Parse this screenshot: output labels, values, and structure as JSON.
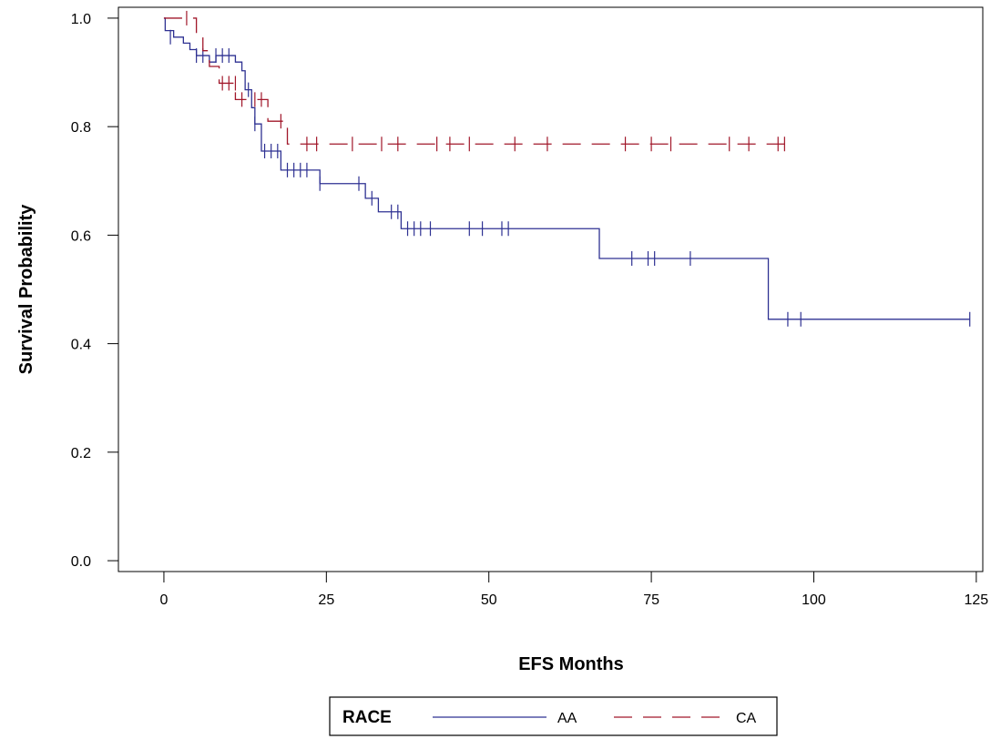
{
  "chart_data": {
    "type": "line",
    "subtype": "kaplan-meier-survival",
    "xlabel": "EFS Months",
    "ylabel": "Survival Probability",
    "xlim": [
      -7,
      126
    ],
    "ylim": [
      -0.02,
      1.02
    ],
    "xticks": [
      0,
      25,
      50,
      75,
      100,
      125
    ],
    "xtick_labels": [
      "0",
      "25",
      "50",
      "75",
      "100",
      "125"
    ],
    "yticks": [
      0.0,
      0.2,
      0.4,
      0.6,
      0.8,
      1.0
    ],
    "ytick_labels": [
      "0.0",
      "0.2",
      "0.4",
      "0.6",
      "0.8",
      "1.0"
    ],
    "grid": false,
    "legend": {
      "placement": "bottom-center",
      "title": "RACE",
      "entries": [
        "AA",
        "CA"
      ]
    },
    "series": [
      {
        "name": "AA",
        "color": "#2e3192",
        "linestyle": "solid",
        "steps": [
          {
            "x": 0,
            "y": 1.0
          },
          {
            "x": 0.2,
            "y": 0.977
          },
          {
            "x": 1.5,
            "y": 0.965
          },
          {
            "x": 3,
            "y": 0.954
          },
          {
            "x": 4,
            "y": 0.942
          },
          {
            "x": 5,
            "y": 0.931
          },
          {
            "x": 7,
            "y": 0.919
          },
          {
            "x": 8,
            "y": 0.931
          },
          {
            "x": 11,
            "y": 0.919
          },
          {
            "x": 12,
            "y": 0.903
          },
          {
            "x": 12.5,
            "y": 0.868
          },
          {
            "x": 13.5,
            "y": 0.835
          },
          {
            "x": 14,
            "y": 0.805
          },
          {
            "x": 15,
            "y": 0.755
          },
          {
            "x": 18,
            "y": 0.72
          },
          {
            "x": 24,
            "y": 0.695
          },
          {
            "x": 31,
            "y": 0.668
          },
          {
            "x": 33,
            "y": 0.643
          },
          {
            "x": 36.5,
            "y": 0.612
          },
          {
            "x": 67,
            "y": 0.557
          },
          {
            "x": 93,
            "y": 0.445
          },
          {
            "x": 124,
            "y": 0.445
          }
        ],
        "censored": [
          {
            "x": 1,
            "y": 0.965
          },
          {
            "x": 5,
            "y": 0.931
          },
          {
            "x": 6,
            "y": 0.931
          },
          {
            "x": 8,
            "y": 0.931
          },
          {
            "x": 9,
            "y": 0.931
          },
          {
            "x": 10,
            "y": 0.931
          },
          {
            "x": 13,
            "y": 0.868
          },
          {
            "x": 14,
            "y": 0.805
          },
          {
            "x": 15.5,
            "y": 0.755
          },
          {
            "x": 16.5,
            "y": 0.755
          },
          {
            "x": 17.5,
            "y": 0.755
          },
          {
            "x": 19,
            "y": 0.72
          },
          {
            "x": 20,
            "y": 0.72
          },
          {
            "x": 21,
            "y": 0.72
          },
          {
            "x": 22,
            "y": 0.72
          },
          {
            "x": 24,
            "y": 0.695
          },
          {
            "x": 30,
            "y": 0.695
          },
          {
            "x": 32,
            "y": 0.668
          },
          {
            "x": 35,
            "y": 0.643
          },
          {
            "x": 36,
            "y": 0.643
          },
          {
            "x": 37.5,
            "y": 0.612
          },
          {
            "x": 38.5,
            "y": 0.612
          },
          {
            "x": 39.5,
            "y": 0.612
          },
          {
            "x": 41,
            "y": 0.612
          },
          {
            "x": 47,
            "y": 0.612
          },
          {
            "x": 49,
            "y": 0.612
          },
          {
            "x": 52,
            "y": 0.612
          },
          {
            "x": 53,
            "y": 0.612
          },
          {
            "x": 72,
            "y": 0.557
          },
          {
            "x": 74.5,
            "y": 0.557
          },
          {
            "x": 75.5,
            "y": 0.557
          },
          {
            "x": 81,
            "y": 0.557
          },
          {
            "x": 96,
            "y": 0.445
          },
          {
            "x": 98,
            "y": 0.445
          },
          {
            "x": 124,
            "y": 0.445
          }
        ]
      },
      {
        "name": "CA",
        "color": "#a1172a",
        "linestyle": "dashed",
        "steps": [
          {
            "x": 0,
            "y": 1.0
          },
          {
            "x": 5,
            "y": 0.97
          },
          {
            "x": 6,
            "y": 0.94
          },
          {
            "x": 7,
            "y": 0.911
          },
          {
            "x": 8.5,
            "y": 0.88
          },
          {
            "x": 11,
            "y": 0.85
          },
          {
            "x": 14.5,
            "y": 0.85
          },
          {
            "x": 16,
            "y": 0.81
          },
          {
            "x": 19,
            "y": 0.768
          },
          {
            "x": 96,
            "y": 0.768
          }
        ],
        "censored": [
          {
            "x": 3.5,
            "y": 1.0
          },
          {
            "x": 9,
            "y": 0.88
          },
          {
            "x": 10,
            "y": 0.88
          },
          {
            "x": 11,
            "y": 0.88
          },
          {
            "x": 12,
            "y": 0.85
          },
          {
            "x": 14,
            "y": 0.85
          },
          {
            "x": 15,
            "y": 0.85
          },
          {
            "x": 18,
            "y": 0.81
          },
          {
            "x": 22,
            "y": 0.768
          },
          {
            "x": 23.5,
            "y": 0.768
          },
          {
            "x": 29,
            "y": 0.768
          },
          {
            "x": 33.5,
            "y": 0.768
          },
          {
            "x": 36,
            "y": 0.768
          },
          {
            "x": 42,
            "y": 0.768
          },
          {
            "x": 44,
            "y": 0.768
          },
          {
            "x": 47,
            "y": 0.768
          },
          {
            "x": 54,
            "y": 0.768
          },
          {
            "x": 59,
            "y": 0.768
          },
          {
            "x": 71,
            "y": 0.768
          },
          {
            "x": 75,
            "y": 0.768
          },
          {
            "x": 78,
            "y": 0.768
          },
          {
            "x": 87,
            "y": 0.768
          },
          {
            "x": 90,
            "y": 0.768
          },
          {
            "x": 94.5,
            "y": 0.768
          },
          {
            "x": 95.5,
            "y": 0.768
          }
        ]
      }
    ]
  }
}
